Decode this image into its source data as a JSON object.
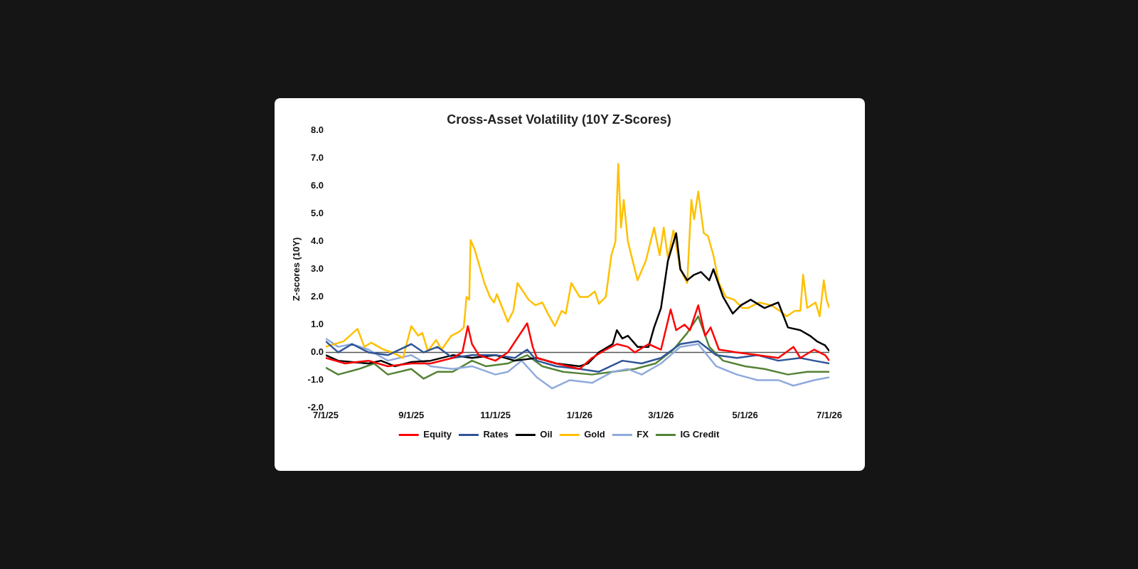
{
  "chart_data": {
    "type": "line",
    "title": "Cross-Asset Volatility (10Y Z-Scores)",
    "ylabel": "Z-scores (10Y)",
    "xlim": [
      "2025-07-01",
      "2026-07-01"
    ],
    "xticks": [
      {
        "value": "2025-07-01",
        "label": "7/1/25"
      },
      {
        "value": "2025-09-01",
        "label": "9/1/25"
      },
      {
        "value": "2025-11-01",
        "label": "11/1/25"
      },
      {
        "value": "2026-01-01",
        "label": "1/1/26"
      },
      {
        "value": "2026-03-01",
        "label": "3/1/26"
      },
      {
        "value": "2026-05-01",
        "label": "5/1/26"
      },
      {
        "value": "2026-07-01",
        "label": "7/1/26"
      }
    ],
    "ylim": [
      -2,
      8
    ],
    "yticks": [
      {
        "value": -2,
        "label": "-2.0"
      },
      {
        "value": -1,
        "label": "-1.0"
      },
      {
        "value": 0,
        "label": "0.0"
      },
      {
        "value": 1,
        "label": "1.0"
      },
      {
        "value": 2,
        "label": "2.0"
      },
      {
        "value": 3,
        "label": "3.0"
      },
      {
        "value": 4,
        "label": "4.0"
      },
      {
        "value": 5,
        "label": "5.0"
      },
      {
        "value": 6,
        "label": "6.0"
      },
      {
        "value": 7,
        "label": "7.0"
      },
      {
        "value": 8,
        "label": "8.0"
      }
    ],
    "grid": false,
    "ref_lines": [
      {
        "axis": "y",
        "value": 0,
        "color": "#555555"
      }
    ],
    "legend": "bottom",
    "marker": "none",
    "line_style": "solid",
    "series": [
      {
        "name": "Equity",
        "color": "#ff0000",
        "x": [
          "2025-07-01",
          "2025-07-15",
          "2025-08-01",
          "2025-08-15",
          "2025-09-01",
          "2025-09-15",
          "2025-10-01",
          "2025-10-08",
          "2025-10-12",
          "2025-10-15",
          "2025-10-20",
          "2025-11-01",
          "2025-11-10",
          "2025-11-24",
          "2025-11-28",
          "2025-12-01",
          "2025-12-15",
          "2026-01-01",
          "2026-01-10",
          "2026-01-20",
          "2026-01-28",
          "2026-02-05",
          "2026-02-10",
          "2026-02-20",
          "2026-03-01",
          "2026-03-08",
          "2026-03-12",
          "2026-03-18",
          "2026-03-22",
          "2026-03-28",
          "2026-04-02",
          "2026-04-06",
          "2026-04-12",
          "2026-04-25",
          "2026-05-10",
          "2026-05-25",
          "2026-06-05",
          "2026-06-10",
          "2026-06-20",
          "2026-06-28",
          "2026-07-01"
        ],
        "values": [
          -0.2,
          -0.4,
          -0.3,
          -0.5,
          -0.4,
          -0.4,
          -0.2,
          0.0,
          0.95,
          0.3,
          -0.1,
          -0.3,
          0.0,
          1.05,
          0.2,
          -0.2,
          -0.4,
          -0.6,
          -0.2,
          0.1,
          0.3,
          0.2,
          0.0,
          0.3,
          0.1,
          1.55,
          0.8,
          1.0,
          0.8,
          1.7,
          0.6,
          0.9,
          0.1,
          0.0,
          -0.1,
          -0.2,
          0.2,
          -0.2,
          0.1,
          -0.1,
          -0.3
        ]
      },
      {
        "name": "Rates",
        "color": "#2f5597",
        "x": [
          "2025-07-01",
          "2025-07-10",
          "2025-07-20",
          "2025-08-01",
          "2025-08-15",
          "2025-09-01",
          "2025-09-10",
          "2025-09-20",
          "2025-10-01",
          "2025-10-15",
          "2025-11-01",
          "2025-11-15",
          "2025-11-24",
          "2025-12-01",
          "2025-12-15",
          "2026-01-01",
          "2026-01-15",
          "2026-02-01",
          "2026-02-15",
          "2026-03-01",
          "2026-03-15",
          "2026-03-28",
          "2026-04-10",
          "2026-04-25",
          "2026-05-10",
          "2026-05-25",
          "2026-06-10",
          "2026-06-20",
          "2026-07-01"
        ],
        "values": [
          0.4,
          0.0,
          0.3,
          0.0,
          -0.1,
          0.3,
          0.0,
          0.2,
          -0.2,
          -0.1,
          -0.1,
          -0.2,
          0.1,
          -0.3,
          -0.5,
          -0.6,
          -0.7,
          -0.3,
          -0.4,
          -0.2,
          0.3,
          0.4,
          -0.1,
          -0.2,
          -0.1,
          -0.3,
          -0.2,
          -0.3,
          -0.4
        ]
      },
      {
        "name": "Oil",
        "color": "#000000",
        "x": [
          "2025-07-01",
          "2025-07-10",
          "2025-07-20",
          "2025-08-01",
          "2025-08-10",
          "2025-08-20",
          "2025-09-01",
          "2025-09-15",
          "2025-10-01",
          "2025-10-15",
          "2025-11-01",
          "2025-11-15",
          "2025-12-01",
          "2025-12-15",
          "2026-01-01",
          "2026-01-07",
          "2026-01-15",
          "2026-01-25",
          "2026-01-28",
          "2026-02-01",
          "2026-02-05",
          "2026-02-12",
          "2026-02-20",
          "2026-02-24",
          "2026-03-01",
          "2026-03-06",
          "2026-03-12",
          "2026-03-15",
          "2026-03-20",
          "2026-03-25",
          "2026-03-30",
          "2026-04-05",
          "2026-04-08",
          "2026-04-15",
          "2026-04-22",
          "2026-04-28",
          "2026-05-05",
          "2026-05-15",
          "2026-05-25",
          "2026-06-01",
          "2026-06-10",
          "2026-06-17",
          "2026-06-22",
          "2026-06-28",
          "2026-07-01"
        ],
        "values": [
          -0.1,
          -0.3,
          -0.35,
          -0.4,
          -0.3,
          -0.5,
          -0.35,
          -0.3,
          -0.1,
          -0.2,
          -0.1,
          -0.3,
          -0.2,
          -0.4,
          -0.5,
          -0.4,
          0.0,
          0.3,
          0.8,
          0.5,
          0.6,
          0.2,
          0.2,
          0.9,
          1.6,
          3.3,
          4.3,
          3.0,
          2.6,
          2.8,
          2.9,
          2.6,
          3.0,
          2.0,
          1.4,
          1.7,
          1.9,
          1.6,
          1.8,
          0.9,
          0.8,
          0.6,
          0.4,
          0.25,
          0.05
        ]
      },
      {
        "name": "Gold",
        "color": "#ffc000",
        "x": [
          "2025-07-01",
          "2025-07-14",
          "2025-07-24",
          "2025-07-29",
          "2025-08-03",
          "2025-08-12",
          "2025-08-18",
          "2025-08-26",
          "2025-09-01",
          "2025-09-06",
          "2025-09-09",
          "2025-09-13",
          "2025-09-19",
          "2025-09-23",
          "2025-09-30",
          "2025-10-06",
          "2025-10-09",
          "2025-10-10",
          "2025-10-11",
          "2025-10-13",
          "2025-10-14",
          "2025-10-17",
          "2025-10-24",
          "2025-10-28",
          "2025-10-31",
          "2025-11-02",
          "2025-11-10",
          "2025-11-14",
          "2025-11-17",
          "2025-11-25",
          "2025-11-30",
          "2025-12-05",
          "2025-12-09",
          "2025-12-14",
          "2025-12-19",
          "2025-12-22",
          "2025-12-26",
          "2026-01-01",
          "2026-01-07",
          "2026-01-12",
          "2026-01-15",
          "2026-01-20",
          "2026-01-24",
          "2026-01-27",
          "2026-01-29",
          "2026-01-31",
          "2026-02-02",
          "2026-02-05",
          "2026-02-08",
          "2026-02-12",
          "2026-02-18",
          "2026-02-24",
          "2026-02-28",
          "2026-03-03",
          "2026-03-06",
          "2026-03-10",
          "2026-03-15",
          "2026-03-20",
          "2026-03-23",
          "2026-03-25",
          "2026-03-28",
          "2026-04-01",
          "2026-04-04",
          "2026-04-08",
          "2026-04-12",
          "2026-04-17",
          "2026-04-23",
          "2026-04-29",
          "2026-05-03",
          "2026-05-11",
          "2026-05-20",
          "2026-05-26",
          "2026-05-31",
          "2026-06-06",
          "2026-06-10",
          "2026-06-12",
          "2026-06-15",
          "2026-06-21",
          "2026-06-24",
          "2026-06-27",
          "2026-06-29",
          "2026-07-01"
        ],
        "values": [
          0.2,
          0.4,
          0.85,
          0.2,
          0.35,
          0.1,
          0.0,
          -0.2,
          0.95,
          0.6,
          0.7,
          0.05,
          0.45,
          0.1,
          0.6,
          0.75,
          0.9,
          1.4,
          2.0,
          1.9,
          4.05,
          3.7,
          2.5,
          2.0,
          1.8,
          2.1,
          1.1,
          1.5,
          2.5,
          1.9,
          1.7,
          1.8,
          1.4,
          0.95,
          1.5,
          1.4,
          2.5,
          2.0,
          2.0,
          2.2,
          1.75,
          2.0,
          3.5,
          4.0,
          6.8,
          4.5,
          5.5,
          4.0,
          3.4,
          2.6,
          3.3,
          4.5,
          3.5,
          4.5,
          3.4,
          4.4,
          3.0,
          2.5,
          5.5,
          4.8,
          5.8,
          4.3,
          4.2,
          3.5,
          2.5,
          2.0,
          1.9,
          1.6,
          1.6,
          1.8,
          1.7,
          1.5,
          1.3,
          1.5,
          1.5,
          2.8,
          1.6,
          1.8,
          1.3,
          2.6,
          1.9,
          1.6
        ]
      },
      {
        "name": "FX",
        "color": "#8faadc",
        "x": [
          "2025-07-01",
          "2025-07-10",
          "2025-07-20",
          "2025-08-01",
          "2025-08-15",
          "2025-09-01",
          "2025-09-15",
          "2025-10-01",
          "2025-10-15",
          "2025-11-01",
          "2025-11-10",
          "2025-11-20",
          "2025-12-01",
          "2025-12-12",
          "2025-12-25",
          "2026-01-10",
          "2026-01-25",
          "2026-02-05",
          "2026-02-15",
          "2026-03-01",
          "2026-03-15",
          "2026-03-28",
          "2026-04-10",
          "2026-04-25",
          "2026-05-10",
          "2026-05-25",
          "2026-06-05",
          "2026-06-20",
          "2026-07-01"
        ],
        "values": [
          0.5,
          0.2,
          0.3,
          0.1,
          -0.3,
          -0.1,
          -0.5,
          -0.6,
          -0.5,
          -0.8,
          -0.7,
          -0.3,
          -0.9,
          -1.3,
          -1.0,
          -1.1,
          -0.7,
          -0.6,
          -0.8,
          -0.4,
          0.2,
          0.3,
          -0.5,
          -0.8,
          -1.0,
          -1.0,
          -1.2,
          -1.0,
          -0.9
        ]
      },
      {
        "name": "IG Credit",
        "color": "#548235",
        "x": [
          "2025-07-01",
          "2025-07-10",
          "2025-07-25",
          "2025-08-05",
          "2025-08-15",
          "2025-09-01",
          "2025-09-10",
          "2025-09-20",
          "2025-10-01",
          "2025-10-15",
          "2025-10-25",
          "2025-11-10",
          "2025-11-24",
          "2025-12-05",
          "2025-12-20",
          "2026-01-10",
          "2026-01-25",
          "2026-02-10",
          "2026-02-25",
          "2026-03-10",
          "2026-03-20",
          "2026-03-28",
          "2026-04-05",
          "2026-04-15",
          "2026-05-01",
          "2026-05-15",
          "2026-06-01",
          "2026-06-15",
          "2026-07-01"
        ],
        "values": [
          -0.55,
          -0.8,
          -0.6,
          -0.4,
          -0.8,
          -0.6,
          -0.95,
          -0.7,
          -0.7,
          -0.3,
          -0.5,
          -0.4,
          -0.1,
          -0.5,
          -0.7,
          -0.8,
          -0.7,
          -0.6,
          -0.4,
          0.1,
          0.7,
          1.3,
          0.2,
          -0.3,
          -0.5,
          -0.6,
          -0.8,
          -0.7,
          -0.7
        ]
      }
    ]
  }
}
